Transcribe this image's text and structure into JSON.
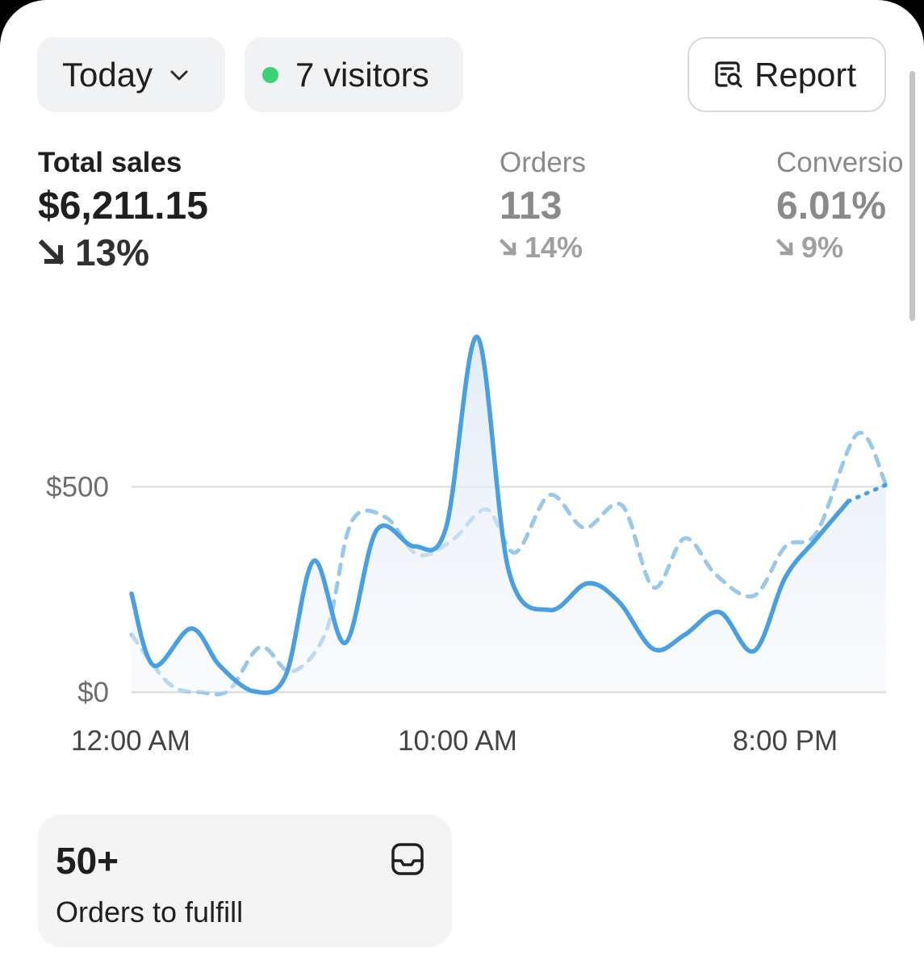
{
  "filters": {
    "period_label": "Today",
    "visitors_label": "7 visitors",
    "report_label": "Report"
  },
  "metrics": [
    {
      "label": "Total sales",
      "value": "$6,211.15",
      "change": "13%",
      "direction": "down"
    },
    {
      "label": "Orders",
      "value": "113",
      "change": "14%",
      "direction": "down"
    },
    {
      "label": "Conversio",
      "value": "6.01%",
      "change": "9%",
      "direction": "down"
    }
  ],
  "colors": {
    "accent": "#4a9fe0",
    "comparison": "#9ac8ea",
    "live_dot": "#3fd07a"
  },
  "chart_data": {
    "type": "line",
    "x_labels": [
      "12:00 AM",
      "10:00 AM",
      "8:00 PM"
    ],
    "y_ticks": [
      {
        "label": "$0",
        "value": 0
      },
      {
        "label": "$500",
        "value": 500
      }
    ],
    "ylim": [
      0,
      900
    ],
    "hours": 24,
    "grid": true,
    "series": [
      {
        "style": "solid",
        "points": [
          {
            "h": 0,
            "v": 240
          },
          {
            "h": 0.7,
            "v": 65
          },
          {
            "h": 1.9,
            "v": 155
          },
          {
            "h": 2.8,
            "v": 65
          },
          {
            "h": 3.9,
            "v": 2
          },
          {
            "h": 4.9,
            "v": 40
          },
          {
            "h": 5.8,
            "v": 320
          },
          {
            "h": 6.8,
            "v": 120
          },
          {
            "h": 7.8,
            "v": 395
          },
          {
            "h": 9.0,
            "v": 355
          },
          {
            "h": 10.0,
            "v": 400
          },
          {
            "h": 11.0,
            "v": 865
          },
          {
            "h": 12.0,
            "v": 295
          },
          {
            "h": 13.3,
            "v": 200
          },
          {
            "h": 14.5,
            "v": 265
          },
          {
            "h": 15.5,
            "v": 220
          },
          {
            "h": 16.6,
            "v": 105
          },
          {
            "h": 17.6,
            "v": 140
          },
          {
            "h": 18.7,
            "v": 195
          },
          {
            "h": 19.8,
            "v": 100
          },
          {
            "h": 20.8,
            "v": 280
          },
          {
            "h": 21.8,
            "v": 375
          },
          {
            "h": 22.8,
            "v": 465
          }
        ],
        "projection": [
          {
            "h": 22.8,
            "v": 465
          },
          {
            "h": 24,
            "v": 505
          }
        ]
      },
      {
        "style": "dashed",
        "points": [
          {
            "h": 0,
            "v": 140
          },
          {
            "h": 1.2,
            "v": 20
          },
          {
            "h": 2.2,
            "v": 0
          },
          {
            "h": 3.1,
            "v": 5
          },
          {
            "h": 4.1,
            "v": 110
          },
          {
            "h": 5.1,
            "v": 50
          },
          {
            "h": 6.2,
            "v": 150
          },
          {
            "h": 7.0,
            "v": 415
          },
          {
            "h": 8.1,
            "v": 425
          },
          {
            "h": 9.1,
            "v": 335
          },
          {
            "h": 10.2,
            "v": 370
          },
          {
            "h": 11.3,
            "v": 445
          },
          {
            "h": 12.2,
            "v": 340
          },
          {
            "h": 13.3,
            "v": 480
          },
          {
            "h": 14.4,
            "v": 400
          },
          {
            "h": 15.6,
            "v": 455
          },
          {
            "h": 16.6,
            "v": 255
          },
          {
            "h": 17.6,
            "v": 375
          },
          {
            "h": 18.6,
            "v": 285
          },
          {
            "h": 19.8,
            "v": 235
          },
          {
            "h": 20.8,
            "v": 355
          },
          {
            "h": 21.8,
            "v": 390
          },
          {
            "h": 23.1,
            "v": 630
          },
          {
            "h": 24,
            "v": 505
          }
        ]
      }
    ]
  },
  "fulfill_card": {
    "count": "50+",
    "label": "Orders to fulfill"
  }
}
